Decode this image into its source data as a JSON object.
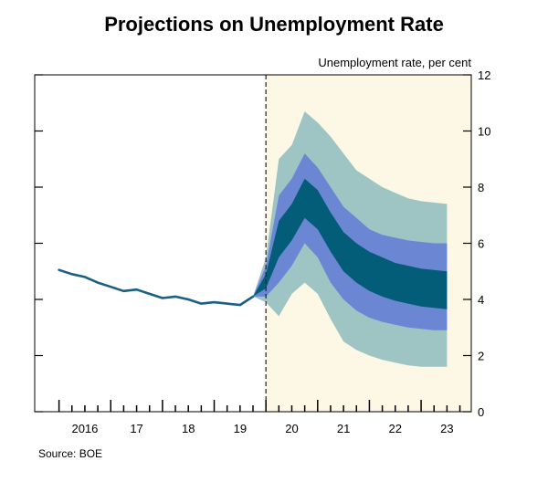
{
  "page": {
    "title": "Projections on Unemployment Rate",
    "source": "Source: BOE"
  },
  "colors": {
    "forecast_background": "#fdf8e6",
    "history_line": "#1a5f85",
    "band_outer": "#9fc4c4",
    "band_middle": "#6b87d4",
    "band_inner": "#045d78",
    "axis": "#000000"
  },
  "chart_data": {
    "type": "area",
    "title": "Projections on Unemployment Rate",
    "ylabel": "Unemployment rate, per cent",
    "xlabel": "",
    "ylim": [
      0,
      12
    ],
    "y_ticks": [
      0,
      2,
      4,
      6,
      8,
      10,
      12
    ],
    "xlim": [
      2015.53,
      2023.97
    ],
    "x_tick_labels": [
      {
        "label": "2016",
        "x": 2016.5
      },
      {
        "label": "17",
        "x": 2017.5
      },
      {
        "label": "18",
        "x": 2018.5
      },
      {
        "label": "19",
        "x": 2019.5
      },
      {
        "label": "20",
        "x": 2020.5
      },
      {
        "label": "21",
        "x": 2021.5
      },
      {
        "label": "22",
        "x": 2022.5
      },
      {
        "label": "23",
        "x": 2023.5
      }
    ],
    "forecast_start": 2020.0,
    "grid": false,
    "history": {
      "name": "Unemployment rate",
      "x": [
        2016.0,
        2016.25,
        2016.5,
        2016.75,
        2017.0,
        2017.25,
        2017.5,
        2017.75,
        2018.0,
        2018.25,
        2018.5,
        2018.75,
        2019.0,
        2019.25,
        2019.5,
        2019.75
      ],
      "y": [
        5.05,
        4.9,
        4.8,
        4.6,
        4.45,
        4.3,
        4.35,
        4.2,
        4.05,
        4.1,
        4.0,
        3.85,
        3.9,
        3.85,
        3.8,
        4.1
      ]
    },
    "fan": {
      "x": [
        2019.75,
        2020.0,
        2020.25,
        2020.5,
        2020.75,
        2021.0,
        2021.25,
        2021.5,
        2021.75,
        2022.0,
        2022.25,
        2022.5,
        2022.75,
        2023.0,
        2023.25,
        2023.5
      ],
      "bands": [
        {
          "name": "outer band",
          "upper": [
            4.1,
            5.5,
            9.0,
            9.5,
            10.7,
            10.3,
            9.8,
            9.2,
            8.6,
            8.3,
            8.0,
            7.8,
            7.6,
            7.5,
            7.45,
            7.4
          ],
          "lower": [
            4.1,
            3.9,
            3.4,
            4.2,
            4.6,
            4.2,
            3.3,
            2.5,
            2.2,
            2.0,
            1.85,
            1.75,
            1.65,
            1.6,
            1.6,
            1.6
          ]
        },
        {
          "name": "middle band",
          "upper": [
            4.1,
            5.2,
            7.7,
            8.3,
            9.2,
            8.7,
            8.0,
            7.3,
            6.9,
            6.5,
            6.3,
            6.2,
            6.1,
            6.05,
            6.0,
            6.0
          ],
          "lower": [
            4.1,
            4.1,
            4.6,
            5.2,
            6.0,
            5.5,
            4.6,
            4.0,
            3.6,
            3.35,
            3.2,
            3.1,
            3.0,
            2.95,
            2.9,
            2.9
          ]
        },
        {
          "name": "inner band",
          "upper": [
            4.1,
            4.9,
            6.8,
            7.4,
            8.3,
            7.9,
            7.1,
            6.4,
            6.0,
            5.7,
            5.5,
            5.3,
            5.2,
            5.1,
            5.05,
            5.0
          ],
          "lower": [
            4.1,
            4.4,
            5.5,
            6.1,
            6.9,
            6.5,
            5.7,
            5.0,
            4.6,
            4.3,
            4.1,
            3.95,
            3.85,
            3.75,
            3.7,
            3.65
          ]
        }
      ]
    }
  }
}
